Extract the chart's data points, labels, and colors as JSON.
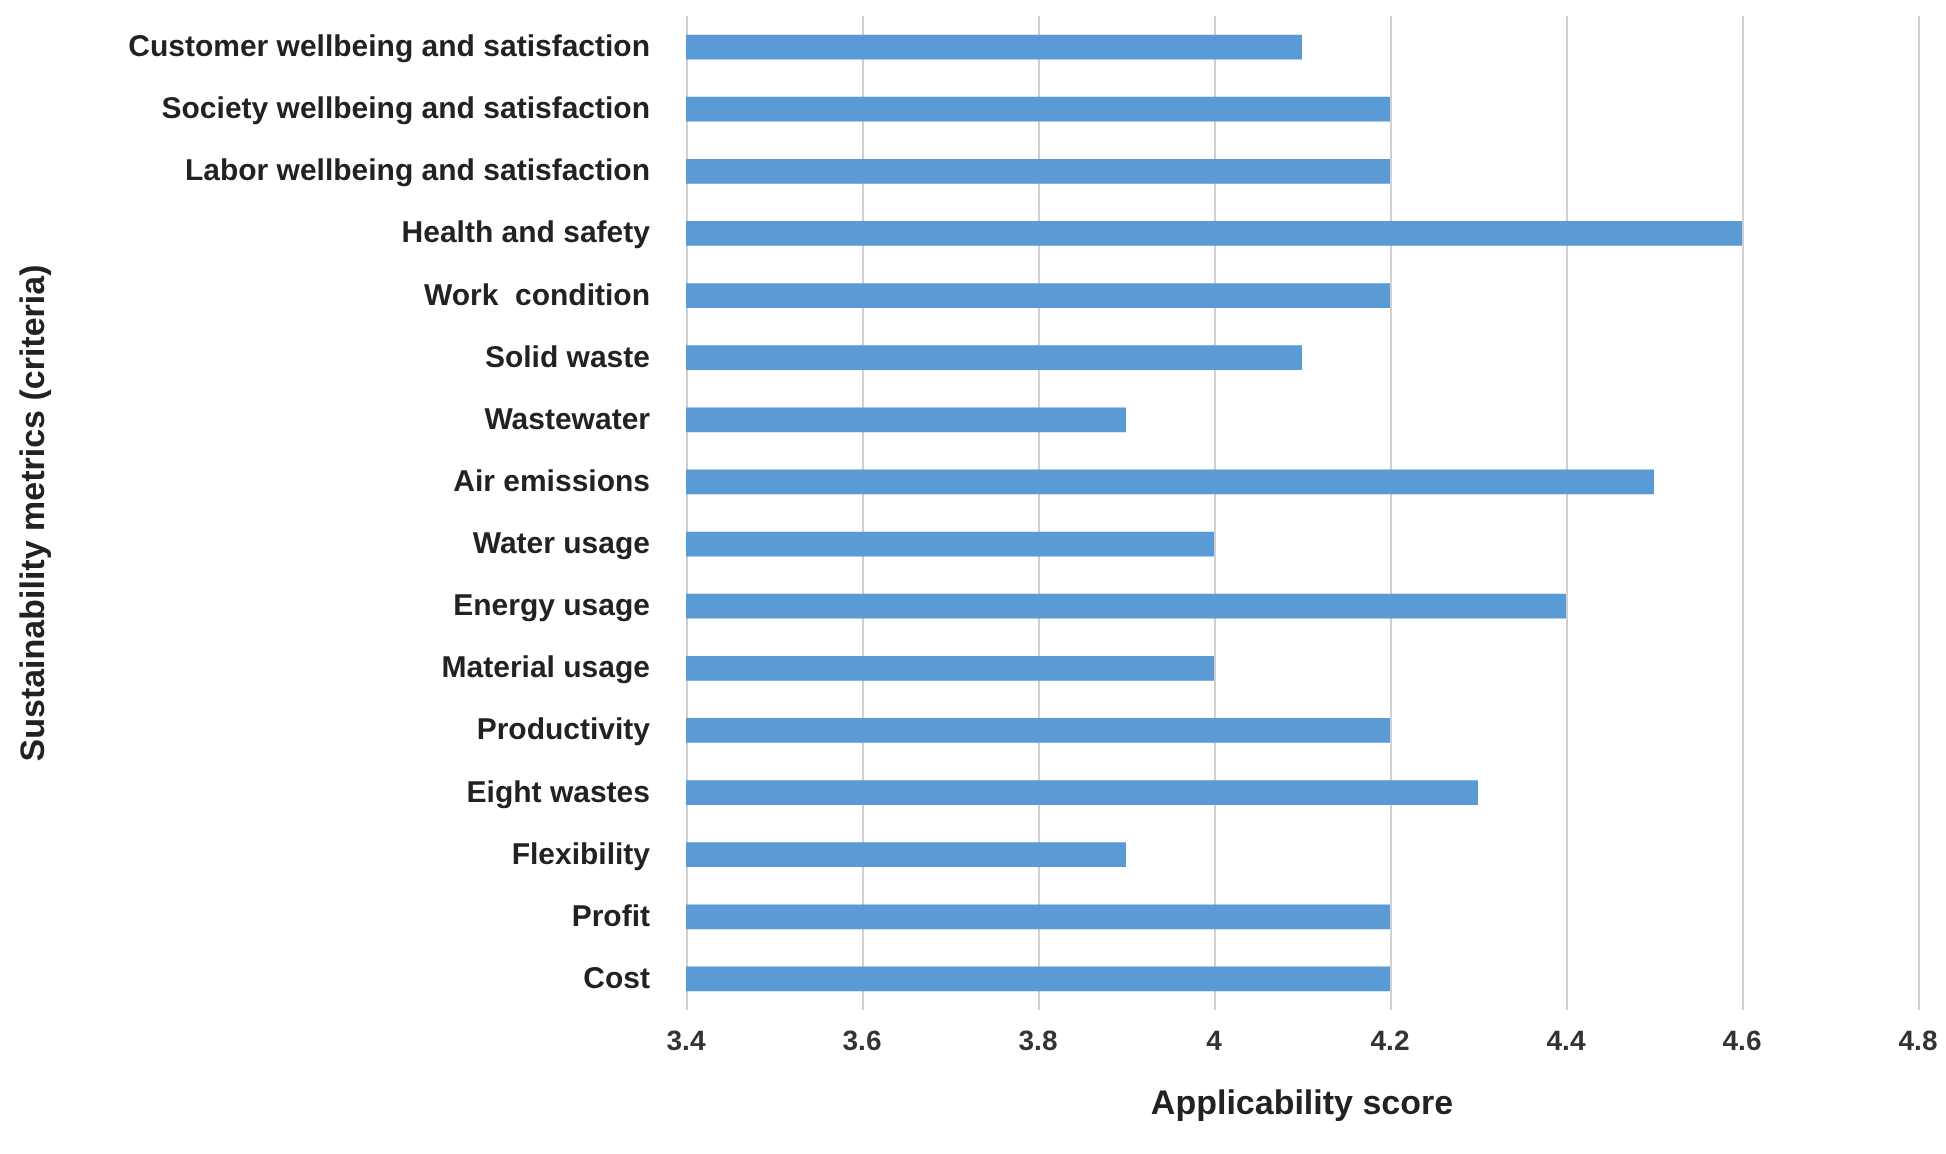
{
  "chart_data": {
    "type": "bar",
    "orientation": "horizontal",
    "xlabel": "Applicability score",
    "ylabel": "Sustainability metrics (criteria)",
    "categories": [
      "Customer wellbeing and satisfaction",
      "Society wellbeing and satisfaction",
      "Labor wellbeing and satisfaction",
      "Health and safety",
      "Work  condition",
      "Solid waste",
      "Wastewater",
      "Air emissions",
      "Water usage",
      "Energy usage",
      "Material usage",
      "Productivity",
      "Eight wastes",
      "Flexibility",
      "Profit",
      "Cost"
    ],
    "values": [
      4.1,
      4.2,
      4.2,
      4.6,
      4.2,
      4.1,
      3.9,
      4.5,
      4.0,
      4.4,
      4.0,
      4.2,
      4.3,
      3.9,
      4.2,
      4.2
    ],
    "color": "#5b9bd5",
    "xlim": [
      3.4,
      4.8
    ],
    "xticks": [
      3.4,
      3.6,
      3.8,
      4,
      4.2,
      4.4,
      4.6,
      4.8
    ],
    "grid": "x"
  }
}
